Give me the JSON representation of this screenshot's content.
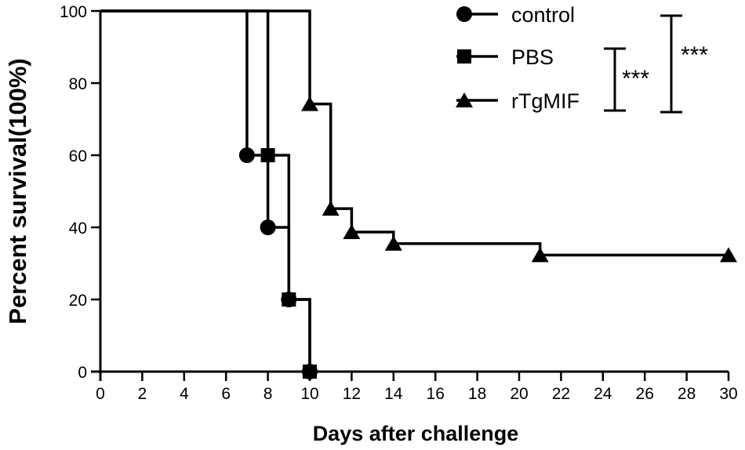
{
  "chart_data": {
    "type": "line",
    "subtype": "kaplan-meier-survival",
    "xlabel": "Days after challenge",
    "ylabel": "Percent survival(100%)",
    "xlim": [
      0,
      30
    ],
    "ylim": [
      0,
      100
    ],
    "xticks": [
      0,
      2,
      4,
      6,
      8,
      10,
      12,
      14,
      16,
      18,
      20,
      22,
      24,
      26,
      28,
      30
    ],
    "yticks": [
      0,
      20,
      40,
      60,
      80,
      100
    ],
    "grid": false,
    "legend_position": "top-right",
    "series": [
      {
        "name": "control",
        "marker": "circle",
        "x": [
          0,
          7,
          8,
          9,
          10
        ],
        "y": [
          100,
          60,
          40,
          20,
          0
        ]
      },
      {
        "name": "PBS",
        "marker": "square",
        "x": [
          0,
          8,
          9,
          10
        ],
        "y": [
          100,
          60,
          20,
          0
        ]
      },
      {
        "name": "rTgMIF",
        "marker": "triangle",
        "x": [
          0,
          10,
          11,
          12,
          14,
          21,
          30
        ],
        "y": [
          100,
          74.2,
          45.2,
          38.7,
          35.5,
          32.3,
          32.3
        ]
      }
    ],
    "significance": [
      {
        "label": "***",
        "between": [
          "PBS",
          "rTgMIF"
        ]
      },
      {
        "label": "***",
        "between": [
          "control",
          "rTgMIF"
        ]
      }
    ]
  }
}
